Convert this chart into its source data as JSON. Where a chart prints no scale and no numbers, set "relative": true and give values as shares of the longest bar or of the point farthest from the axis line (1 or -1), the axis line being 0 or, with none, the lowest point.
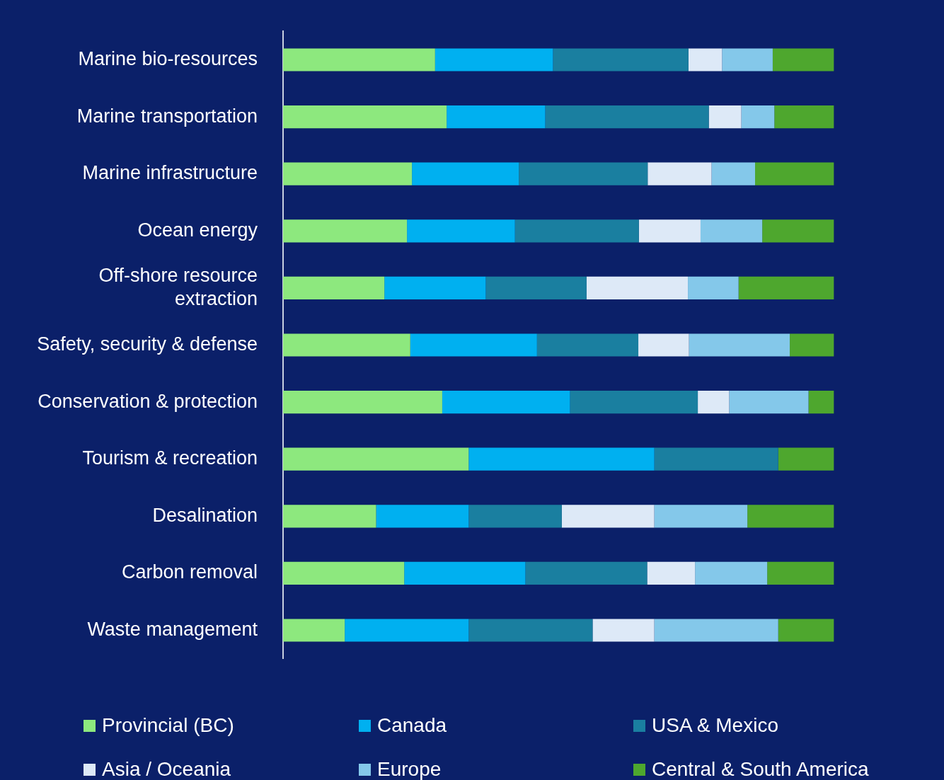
{
  "chart_data": {
    "type": "bar",
    "orientation": "horizontal",
    "stacked": true,
    "relative": true,
    "legend": "bottom",
    "grid": false,
    "categories": [
      "Marine bio-resources",
      "Marine transportation",
      "Marine infrastructure",
      "Ocean energy",
      "Off-shore resource extraction",
      "Safety, security & defense",
      "Conservation & protection",
      "Tourism & recreation",
      "Desalination",
      "Carbon removal",
      "Waste management"
    ],
    "series": [
      {
        "name": "Provincial (BC)",
        "color": "#8de87e",
        "values": [
          0.276,
          0.297,
          0.234,
          0.225,
          0.184,
          0.231,
          0.289,
          0.337,
          0.169,
          0.22,
          0.112
        ]
      },
      {
        "name": "Canada",
        "color": "#00b0f0",
        "values": [
          0.214,
          0.179,
          0.194,
          0.196,
          0.184,
          0.23,
          0.232,
          0.337,
          0.168,
          0.22,
          0.225
        ]
      },
      {
        "name": "USA & Mexico",
        "color": "#1a7fa0",
        "values": [
          0.246,
          0.297,
          0.234,
          0.225,
          0.183,
          0.184,
          0.232,
          0.225,
          0.169,
          0.221,
          0.225
        ]
      },
      {
        "name": "Asia / Oceania",
        "color": "#dde9f7",
        "values": [
          0.061,
          0.059,
          0.116,
          0.112,
          0.184,
          0.092,
          0.057,
          0,
          0.168,
          0.087,
          0.112
        ]
      },
      {
        "name": "Europe",
        "color": "#84c8ea",
        "values": [
          0.092,
          0.06,
          0.079,
          0.112,
          0.092,
          0.183,
          0.144,
          0,
          0.169,
          0.131,
          0.225
        ]
      },
      {
        "name": "Central & South America",
        "color": "#4ea72e",
        "values": [
          0.111,
          0.108,
          0.143,
          0.13,
          0.173,
          0.08,
          0.046,
          0.101,
          0.157,
          0.121,
          0.101
        ]
      }
    ]
  }
}
